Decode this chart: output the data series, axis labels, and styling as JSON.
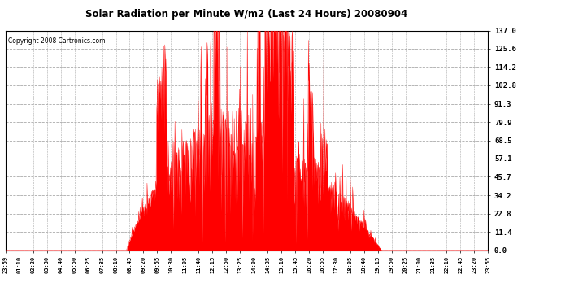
{
  "title": "Solar Radiation per Minute W/m2 (Last 24 Hours) 20080904",
  "copyright": "Copyright 2008 Cartronics.com",
  "bar_color": "#ff0000",
  "background_color": "#ffffff",
  "grid_color": "#aaaaaa",
  "yticks": [
    0.0,
    11.4,
    22.8,
    34.2,
    45.7,
    57.1,
    68.5,
    79.9,
    91.3,
    102.8,
    114.2,
    125.6,
    137.0
  ],
  "ylim": [
    0,
    137.0
  ],
  "xtick_labels": [
    "23:59",
    "01:10",
    "02:20",
    "03:30",
    "04:40",
    "05:50",
    "06:25",
    "07:35",
    "08:10",
    "08:45",
    "09:20",
    "09:55",
    "10:30",
    "11:05",
    "11:40",
    "12:15",
    "12:50",
    "13:25",
    "14:00",
    "14:35",
    "15:10",
    "15:45",
    "16:20",
    "16:55",
    "17:30",
    "18:05",
    "18:40",
    "19:15",
    "19:50",
    "20:25",
    "21:00",
    "21:35",
    "22:10",
    "22:45",
    "23:20",
    "23:55"
  ]
}
